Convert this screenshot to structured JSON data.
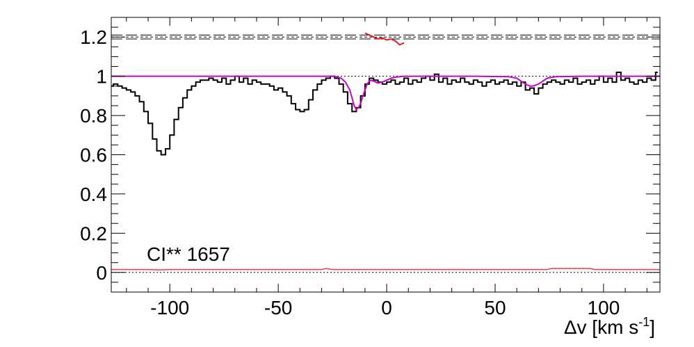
{
  "chart_data": {
    "type": "line",
    "title": "",
    "xlabel": "Δv [km s",
    "xlabel_superscript": "-1",
    "xlabel_close": "]",
    "ylabel": "",
    "xlim": [
      -127,
      126
    ],
    "ylim": [
      -0.1,
      1.3
    ],
    "grid": false,
    "x_ticks": [
      -100,
      -50,
      0,
      50,
      100
    ],
    "x_tick_labels": [
      "-100",
      "-50",
      "0",
      "50",
      "100"
    ],
    "y_ticks": [
      0,
      0.2,
      0.4,
      0.6,
      0.8,
      1,
      1.2
    ],
    "y_tick_labels": [
      "0",
      "0.2",
      "0.4",
      "0.6",
      "0.8",
      "1",
      "1.2"
    ],
    "annotation": "CI** 1657",
    "colors": {
      "data": "#000000",
      "model": "#cc00cc",
      "residual": "#e31a1c",
      "error": "#e34040",
      "reference": "#000000",
      "background": "#ffffff"
    },
    "reference_lines": {
      "continuum": 1.0,
      "zero": 0.0,
      "residual_band": [
        1.19,
        1.2,
        1.21
      ]
    },
    "series": [
      {
        "name": "",
        "style": "step",
        "x": [
          -127,
          -125,
          -123,
          -121,
          -119,
          -117,
          -115,
          -113,
          -111,
          -109,
          -107,
          -105,
          -103,
          -101,
          -99,
          -97,
          -95,
          -93,
          -91,
          -89,
          -87,
          -85,
          -83,
          -81,
          -79,
          -77,
          -75,
          -73,
          -71,
          -69,
          -67,
          -65,
          -63,
          -61,
          -59,
          -57,
          -55,
          -53,
          -51,
          -49,
          -47,
          -45,
          -43,
          -41,
          -39,
          -37,
          -35,
          -33,
          -31,
          -29,
          -27,
          -25,
          -23,
          -21,
          -19,
          -17,
          -15,
          -13,
          -11,
          -9,
          -7,
          -5,
          -3,
          -1,
          1,
          3,
          5,
          7,
          9,
          11,
          13,
          15,
          17,
          19,
          21,
          23,
          25,
          27,
          29,
          31,
          33,
          35,
          37,
          39,
          41,
          43,
          45,
          47,
          49,
          51,
          53,
          55,
          57,
          59,
          61,
          63,
          65,
          67,
          69,
          71,
          73,
          75,
          77,
          79,
          81,
          83,
          85,
          87,
          89,
          91,
          93,
          95,
          97,
          99,
          101,
          103,
          105,
          107,
          109,
          111,
          113,
          115,
          117,
          119,
          121,
          123,
          125
        ],
        "y": [
          0.95,
          0.96,
          0.95,
          0.94,
          0.93,
          0.92,
          0.9,
          0.87,
          0.82,
          0.76,
          0.68,
          0.62,
          0.6,
          0.63,
          0.7,
          0.78,
          0.84,
          0.89,
          0.93,
          0.95,
          0.97,
          0.98,
          0.98,
          0.99,
          0.98,
          0.97,
          0.99,
          0.96,
          0.98,
          1.0,
          0.97,
          0.99,
          0.96,
          0.98,
          0.97,
          0.96,
          0.96,
          0.95,
          0.93,
          0.94,
          0.92,
          0.9,
          0.86,
          0.83,
          0.82,
          0.83,
          0.88,
          0.93,
          0.96,
          0.98,
          0.99,
          1.0,
          0.99,
          0.96,
          0.92,
          0.86,
          0.82,
          0.84,
          0.9,
          0.96,
          0.99,
          0.98,
          0.97,
          0.96,
          0.97,
          0.98,
          0.96,
          0.97,
          0.99,
          0.96,
          0.98,
          0.97,
          0.99,
          1.0,
          0.98,
          1.01,
          0.97,
          0.99,
          0.96,
          0.98,
          0.97,
          0.99,
          0.97,
          0.96,
          0.98,
          0.97,
          0.95,
          0.97,
          0.98,
          0.96,
          0.97,
          0.98,
          0.96,
          0.97,
          0.95,
          0.97,
          0.93,
          0.94,
          0.91,
          0.94,
          0.96,
          0.97,
          0.98,
          0.97,
          0.96,
          0.98,
          0.97,
          0.99,
          0.96,
          0.97,
          0.98,
          0.96,
          0.98,
          1.0,
          0.97,
          0.99,
          0.97,
          1.02,
          0.98,
          0.99,
          0.97,
          0.96,
          0.98,
          0.97,
          0.99,
          0.98,
          1.02
        ]
      },
      {
        "name": "",
        "style": "line",
        "x": [
          -127,
          -30,
          -24,
          -21,
          -19,
          -17,
          -16,
          -15,
          -14,
          -13,
          -12,
          -11,
          -10,
          -9,
          -8,
          -7,
          -6,
          -5,
          -4,
          -2,
          0,
          2,
          4,
          6,
          8,
          12,
          20,
          40,
          56,
          60,
          62,
          64,
          66,
          67,
          68,
          70,
          72,
          74,
          78,
          90,
          126
        ],
        "y": [
          1.0,
          1.0,
          1.0,
          0.99,
          0.97,
          0.93,
          0.89,
          0.85,
          0.83,
          0.84,
          0.86,
          0.9,
          0.93,
          0.96,
          0.975,
          0.98,
          0.975,
          0.97,
          0.965,
          0.97,
          0.98,
          0.99,
          0.995,
          0.998,
          1.0,
          1.0,
          1.0,
          1.0,
          0.998,
          0.99,
          0.975,
          0.96,
          0.95,
          0.95,
          0.952,
          0.96,
          0.975,
          0.99,
          0.998,
          1.0,
          1.0
        ]
      },
      {
        "name": "",
        "style": "line",
        "x": [
          -10,
          -8,
          -6,
          -4,
          -2,
          0,
          2,
          4,
          6,
          8
        ],
        "y": [
          1.22,
          1.21,
          1.2,
          1.19,
          1.195,
          1.185,
          1.19,
          1.18,
          1.16,
          1.17
        ]
      },
      {
        "name": "",
        "style": "line",
        "x": [
          -127,
          -110,
          -105,
          -100,
          -90,
          -30,
          -28,
          -25,
          -10,
          0,
          40,
          74,
          76,
          80,
          90,
          94,
          96,
          126
        ],
        "y": [
          0.015,
          0.015,
          0.013,
          0.015,
          0.015,
          0.015,
          0.02,
          0.015,
          0.015,
          0.015,
          0.015,
          0.015,
          0.02,
          0.02,
          0.02,
          0.02,
          0.015,
          0.015
        ]
      }
    ]
  }
}
